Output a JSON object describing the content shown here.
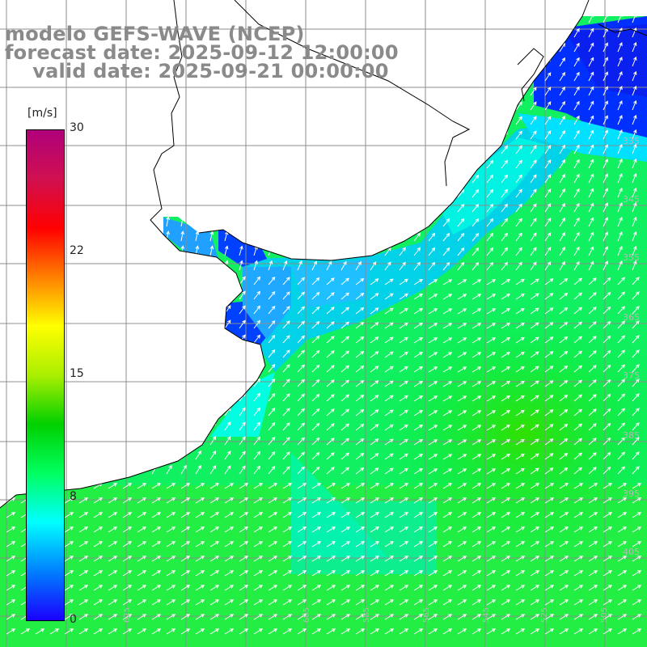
{
  "title": {
    "line1": "modelo GEFS-WAVE (NCEP)",
    "line2": "forecast date: 2025-09-12 12:00:00",
    "line3": "    valid date: 2025-09-21 00:00:00"
  },
  "colorbar": {
    "unit": "[m/s]",
    "ticks": [
      "30",
      "22",
      "15",
      "8",
      "0"
    ],
    "range": [
      0,
      30
    ],
    "colors": [
      "#1a00ff",
      "#0080ff",
      "#00ffff",
      "#00ff60",
      "#00d000",
      "#aaee00",
      "#ffff00",
      "#ff8000",
      "#ff0000",
      "#d01050",
      "#b0007a"
    ]
  },
  "map": {
    "variable": "wind speed",
    "grid_lines": true,
    "coastline_color": "#000000",
    "land_color": "#ffffff",
    "arrow_color": "#ffffff",
    "lat_labels": [
      "335",
      "345",
      "355",
      "365",
      "375",
      "385",
      "395",
      "405"
    ],
    "lon_labels": [
      "625",
      "605",
      "585",
      "565",
      "545",
      "525",
      "505"
    ]
  }
}
